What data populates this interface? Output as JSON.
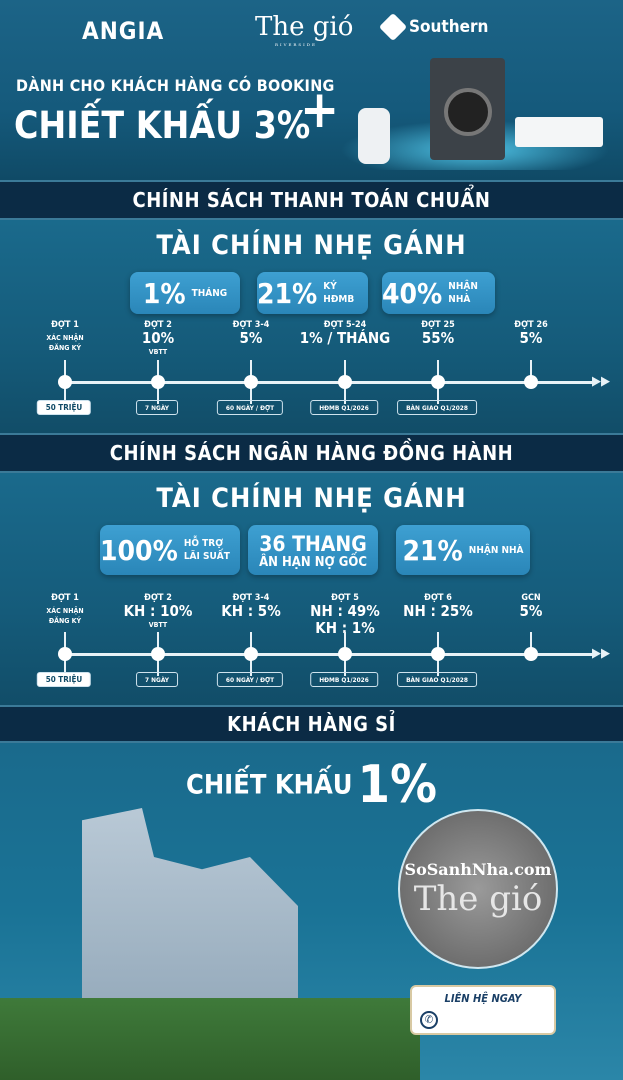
{
  "header": {
    "logo_angia": "ANGIA",
    "logo_thegio": "The gió",
    "logo_thegio_sub": "RIVERSIDE",
    "logo_southern": "Southern",
    "promo_line1": "DÀNH CHO KHÁCH HÀNG CÓ BOOKING",
    "promo_line2": "CHIẾT KHẤU 3%",
    "plus": "+"
  },
  "section1": {
    "band": "CHÍNH SÁCH THANH TOÁN CHUẨN",
    "title": "TÀI CHÍNH NHẸ GÁNH",
    "boxes": [
      {
        "big": "1%",
        "small": "THÁNG"
      },
      {
        "big": "21%",
        "small": "KÝ HĐMB"
      },
      {
        "big": "40%",
        "small": "NHẬN NHÀ"
      }
    ],
    "steps": [
      {
        "dot": "ĐỢT 1",
        "value": "",
        "value2": "",
        "sub": "XÁC NHẬN ĐĂNG KÝ",
        "tag": "50 TRIỆU"
      },
      {
        "dot": "ĐỢT 2",
        "value": "10%",
        "value2": "",
        "sub": "VBTT",
        "tag": "7 NGÀY"
      },
      {
        "dot": "ĐỢT 3-4",
        "value": "5%",
        "value2": "",
        "sub": "",
        "tag": "60 NGÀY / ĐỢT"
      },
      {
        "dot": "ĐỢT 5-24",
        "value": "1% / THÁNG",
        "value2": "",
        "sub": "",
        "tag": "HĐMB Q1/2026"
      },
      {
        "dot": "ĐỢT 25",
        "value": "55%",
        "value2": "",
        "sub": "",
        "tag": "BÀN GIAO Q1/2028"
      },
      {
        "dot": "ĐỢT 26",
        "value": "5%",
        "value2": "",
        "sub": "",
        "tag": ""
      }
    ]
  },
  "section2": {
    "band": "CHÍNH SÁCH NGÂN HÀNG ĐỒNG HÀNH",
    "title": "TÀI CHÍNH NHẸ GÁNH",
    "boxes": [
      {
        "big": "100%",
        "small": "HỖ TRỢ LÃI SUẤT"
      },
      {
        "big": "36 THANG",
        "small": "ÂN HẠN NỢ GỐC"
      },
      {
        "big": "21%",
        "small": "NHẬN NHÀ"
      }
    ],
    "steps": [
      {
        "dot": "ĐỢT 1",
        "value": "",
        "value2": "",
        "sub": "XÁC NHẬN ĐĂNG KÝ",
        "tag": "50 TRIỆU"
      },
      {
        "dot": "ĐỢT 2",
        "value": "KH : 10%",
        "value2": "",
        "sub": "VBTT",
        "tag": "7 NGÀY"
      },
      {
        "dot": "ĐỢT 3-4",
        "value": "KH : 5%",
        "value2": "",
        "sub": "",
        "tag": "60 NGÀY / ĐỢT"
      },
      {
        "dot": "ĐỢT 5",
        "value": "NH : 49%",
        "value2": "KH :   1%",
        "sub": "",
        "tag": "HĐMB Q1/2026"
      },
      {
        "dot": "ĐỢT 6",
        "value": "NH : 25%",
        "value2": "",
        "sub": "",
        "tag": "BÀN GIAO Q1/2028"
      },
      {
        "dot": "GCN",
        "value": "5%",
        "value2": "",
        "sub": "",
        "tag": ""
      }
    ]
  },
  "section3": {
    "band": "KHÁCH HÀNG SỈ",
    "discount_label": "CHIẾT KHẤU",
    "discount_value": "1%",
    "watermark": "SoSanhNha.com",
    "circle_logo": "The gió",
    "contact_button": "LIÊN HỆ NGAY"
  }
}
